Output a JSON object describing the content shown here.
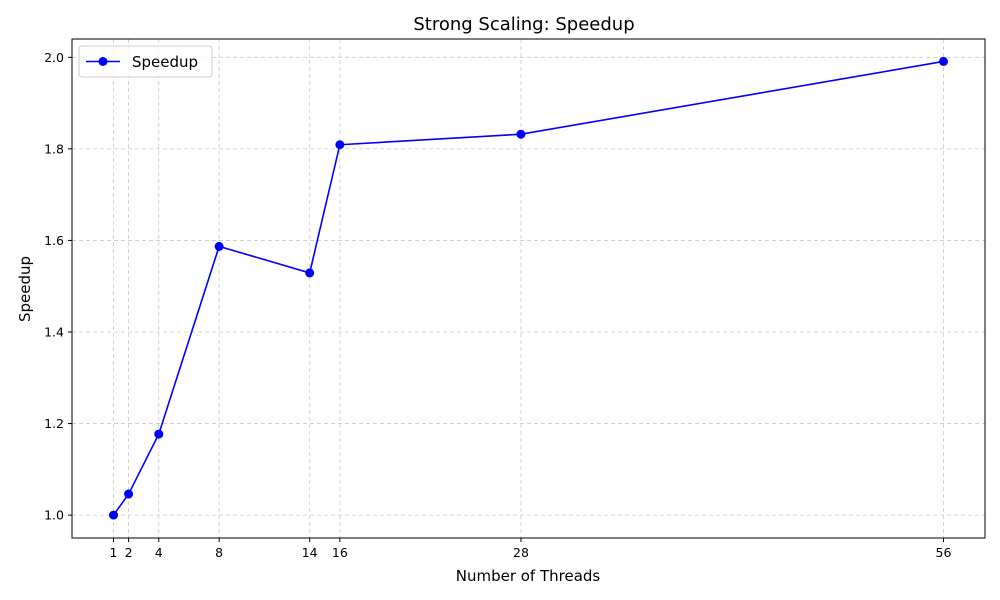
{
  "chart_data": {
    "type": "line",
    "title": "Strong Scaling: Speedup",
    "xlabel": "Number of Threads",
    "ylabel": "Speedup",
    "x": [
      1,
      2,
      4,
      8,
      14,
      16,
      28,
      56
    ],
    "series": [
      {
        "name": "Speedup",
        "values": [
          1.0,
          1.046,
          1.177,
          1.587,
          1.529,
          1.809,
          1.832,
          1.991
        ],
        "color": "#0000ff",
        "marker": "circle"
      }
    ],
    "xticks": [
      1,
      2,
      4,
      8,
      14,
      16,
      28,
      56
    ],
    "xtick_labels": [
      "1",
      "2",
      "4",
      "8",
      "14",
      "16",
      "28",
      "56"
    ],
    "yticks": [
      1.0,
      1.2,
      1.4,
      1.6,
      1.8,
      2.0
    ],
    "ytick_labels": [
      "1.0",
      "1.2",
      "1.4",
      "1.6",
      "1.8",
      "2.0"
    ],
    "xlim": [
      -1.75,
      58.75
    ],
    "ylim": [
      0.95,
      2.04
    ],
    "grid": true,
    "legend_position": "top-left"
  }
}
